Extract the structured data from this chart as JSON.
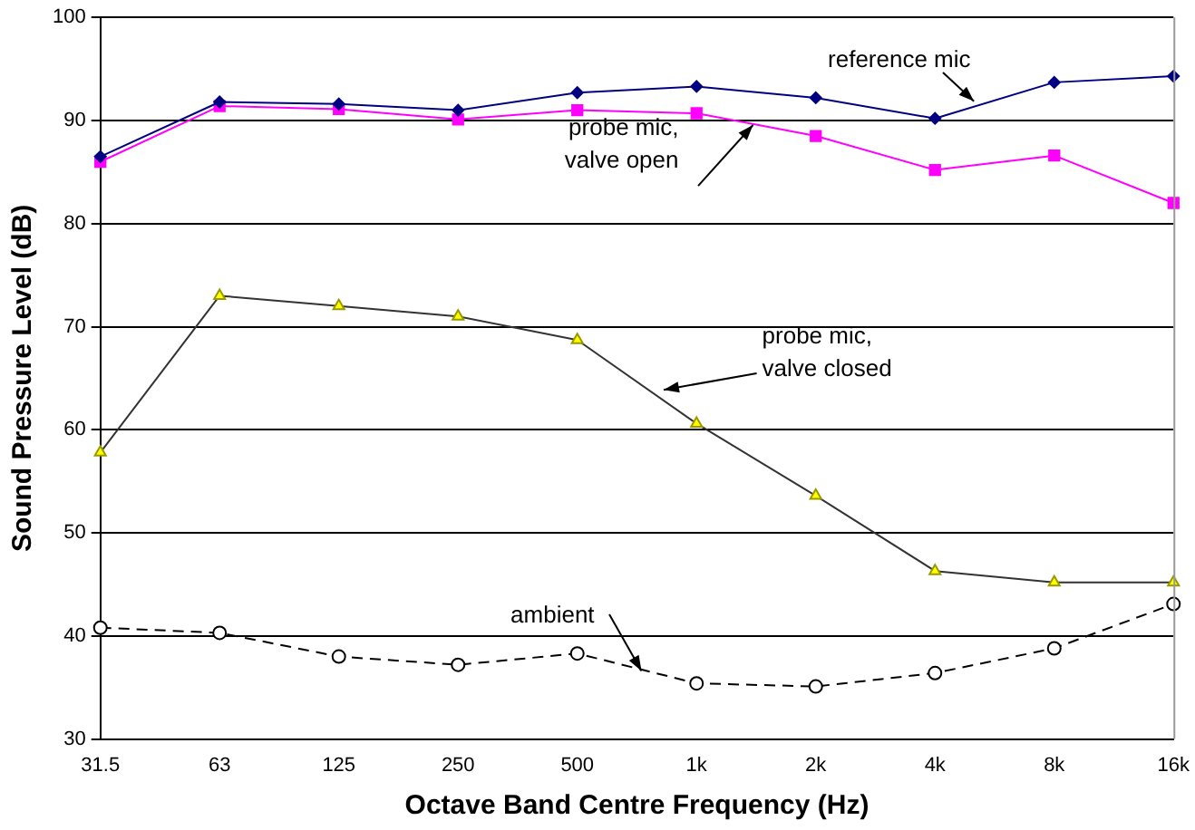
{
  "chart_data": {
    "type": "line",
    "xlabel": "Octave Band Centre Frequency (Hz)",
    "ylabel": "Sound Pressure Level (dB)",
    "categories": [
      "31.5",
      "63",
      "125",
      "250",
      "500",
      "1k",
      "2k",
      "4k",
      "8k",
      "16k"
    ],
    "series": [
      {
        "name": "reference mic",
        "color": "#000080",
        "marker": "diamond",
        "line_style": "solid",
        "values": [
          86.5,
          91.8,
          91.6,
          91.0,
          92.7,
          93.3,
          92.2,
          90.2,
          93.7,
          94.3
        ]
      },
      {
        "name": "probe mic, valve open",
        "color": "#ff00ff",
        "marker": "square",
        "line_style": "solid",
        "values": [
          86.0,
          91.4,
          91.1,
          90.1,
          91.0,
          90.7,
          88.5,
          85.2,
          86.6,
          82.0
        ]
      },
      {
        "name": "probe mic, valve closed",
        "color": "#333333",
        "marker": "triangle",
        "line_style": "solid",
        "values": [
          57.8,
          73.0,
          72.0,
          71.0,
          68.7,
          60.6,
          53.6,
          46.3,
          45.2,
          45.2
        ]
      },
      {
        "name": "ambient",
        "color": "#000000",
        "marker": "circle",
        "line_style": "dashed",
        "values": [
          40.8,
          40.3,
          38.0,
          37.2,
          38.3,
          35.4,
          35.1,
          36.4,
          38.8,
          43.1
        ]
      }
    ],
    "ylim": [
      30,
      100
    ],
    "yticks": [
      30,
      40,
      50,
      60,
      70,
      80,
      90,
      100
    ],
    "grid": "y",
    "legend": false
  }
}
